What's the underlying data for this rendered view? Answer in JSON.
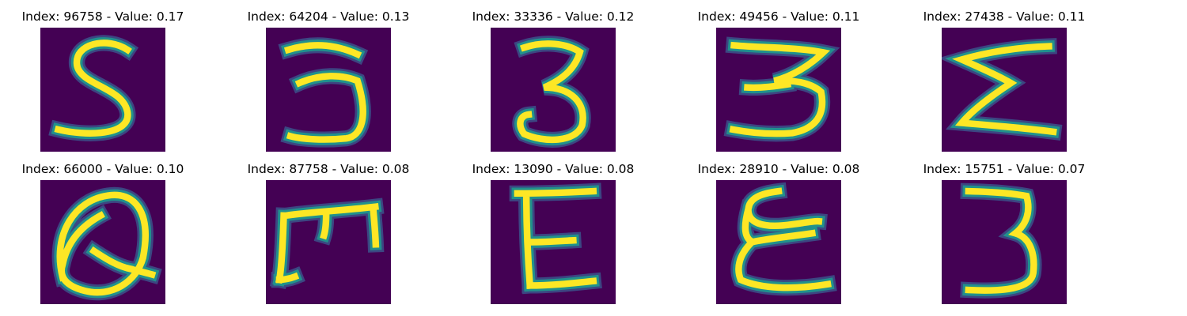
{
  "colors": {
    "background": "#440154",
    "stroke_mid": "#21918c",
    "stroke_core": "#fde725",
    "stroke_edge": "#3b528b"
  },
  "images": [
    {
      "title": "Index: 96758 - Value: 0.17",
      "glyph": "S"
    },
    {
      "title": "Index: 64204 - Value: 0.13",
      "glyph": "3"
    },
    {
      "title": "Index: 33336 - Value: 0.12",
      "glyph": "3"
    },
    {
      "title": "Index: 49456 - Value: 0.11",
      "glyph": "3"
    },
    {
      "title": "Index: 27438 - Value: 0.11",
      "glyph": "Σ"
    },
    {
      "title": "Index: 66000 - Value: 0.10",
      "glyph": "Q"
    },
    {
      "title": "Index: 87758 - Value: 0.08",
      "glyph": "m"
    },
    {
      "title": "Index: 13090 - Value: 0.08",
      "glyph": "E"
    },
    {
      "title": "Index: 28910 - Value: 0.08",
      "glyph": "ε"
    },
    {
      "title": "Index: 15751 - Value: 0.07",
      "glyph": "3"
    }
  ]
}
